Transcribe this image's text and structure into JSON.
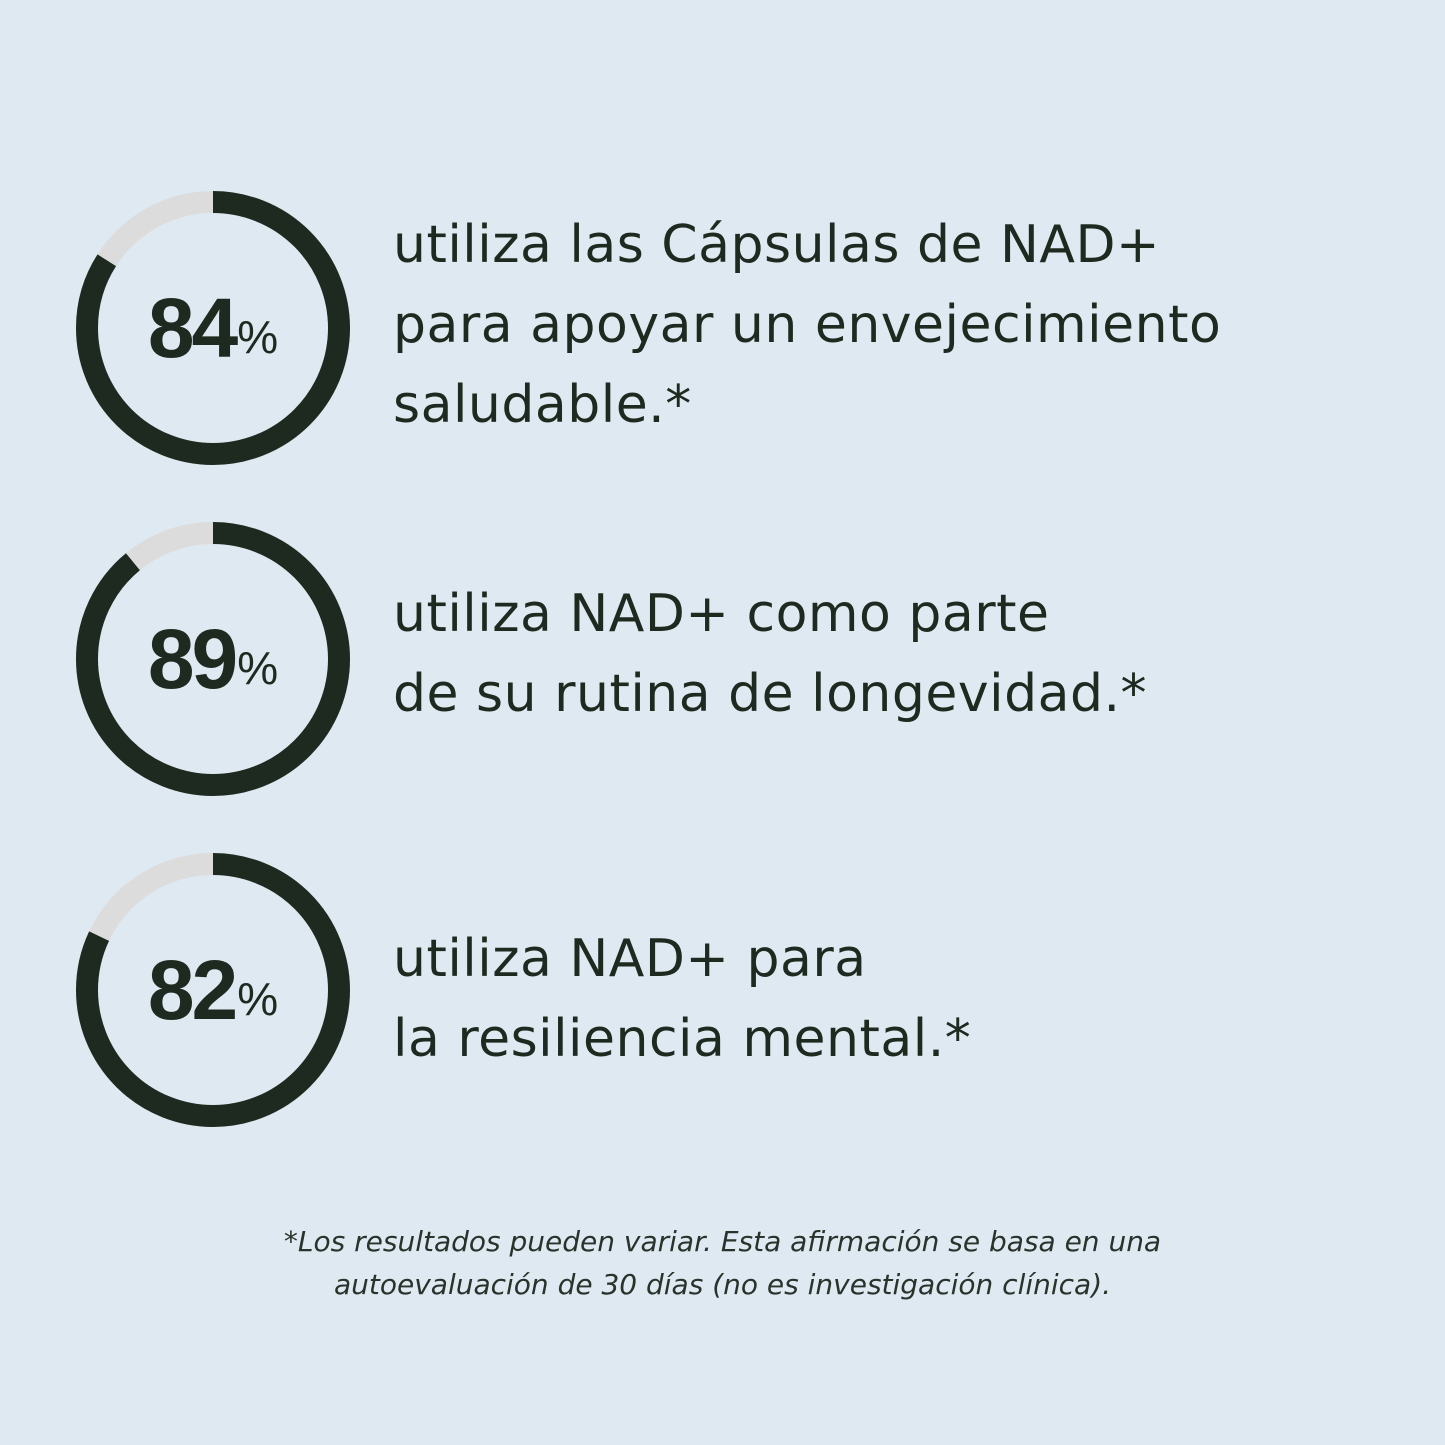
{
  "colors": {
    "background": "#dfe9f2",
    "ring_fill": "#1e2a1f",
    "ring_track": "#dcdcdc",
    "text": "#1e2a1f"
  },
  "stats": [
    {
      "value": "84",
      "percent": 84,
      "unit": "%",
      "lines": [
        "utiliza las Cápsulas de NAD+",
        "para apoyar un envejecimiento",
        "saludable.*"
      ]
    },
    {
      "value": "89",
      "percent": 89,
      "unit": "%",
      "lines": [
        "utiliza NAD+ como parte",
        "de su rutina de longevidad.*"
      ]
    },
    {
      "value": "82",
      "percent": 82,
      "unit": "%",
      "lines": [
        "utiliza NAD+ para",
        "la resiliencia mental.*"
      ]
    }
  ],
  "footnote": {
    "lines": [
      "*Los resultados pueden variar. Esta afirmación se basa en una",
      "autoevaluación de 30 días (no es investigación clínica)."
    ]
  }
}
